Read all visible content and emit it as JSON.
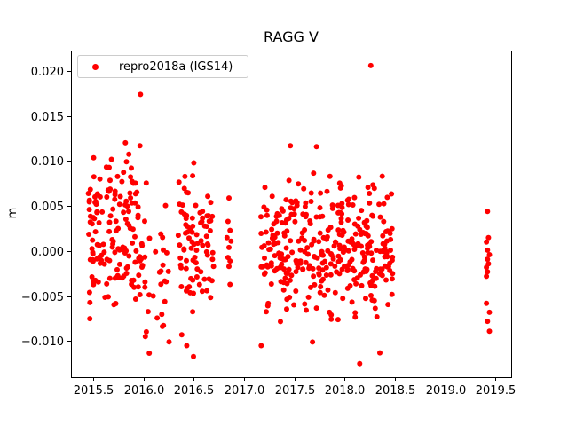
{
  "figure": {
    "title": "RAGG V",
    "ylabel": "m",
    "legend": {
      "label": "repro2018a (IGS14)",
      "marker_color": "#ff0000"
    }
  },
  "chart_data": {
    "type": "scatter",
    "title": "RAGG V",
    "xlabel": "",
    "ylabel": "m",
    "series_name": "repro2018a (IGS14)",
    "marker_color": "#ff0000",
    "marker_radius_px": 3,
    "grid": false,
    "legend_position": "upper left",
    "xlim": [
      2015.279,
      2019.656
    ],
    "ylim": [
      -0.014,
      0.02227
    ],
    "xticks": [
      {
        "value": 2015.5,
        "label": "2015.5"
      },
      {
        "value": 2016.0,
        "label": "2016.0"
      },
      {
        "value": 2016.5,
        "label": "2016.5"
      },
      {
        "value": 2017.0,
        "label": "2017.0"
      },
      {
        "value": 2017.5,
        "label": "2017.5"
      },
      {
        "value": 2018.0,
        "label": "2018.0"
      },
      {
        "value": 2018.5,
        "label": "2018.5"
      },
      {
        "value": 2019.0,
        "label": "2019.0"
      },
      {
        "value": 2019.5,
        "label": "2019.5"
      }
    ],
    "yticks": [
      {
        "value": 0.02,
        "label": "0.020"
      },
      {
        "value": 0.015,
        "label": "0.015"
      },
      {
        "value": 0.01,
        "label": "0.010"
      },
      {
        "value": 0.005,
        "label": "0.005"
      },
      {
        "value": 0.0,
        "label": "0.000"
      },
      {
        "value": -0.005,
        "label": "−0.005"
      },
      {
        "value": -0.01,
        "label": "−0.010"
      }
    ],
    "seed": 7,
    "clusters": [
      {
        "name": "2015-dense",
        "x_start": 2015.45,
        "x_end": 2015.98,
        "n": 150,
        "y_mean": 0.0012,
        "y_sd": 0.0045,
        "y_min": -0.0088,
        "y_max": 0.0127
      },
      {
        "name": "2016-tail",
        "x_start": 2015.98,
        "x_end": 2016.26,
        "n": 35,
        "y_mean": -0.0015,
        "y_sd": 0.005,
        "y_min": -0.0115,
        "y_max": 0.0085
      },
      {
        "name": "2016-mid",
        "x_start": 2016.34,
        "x_end": 2016.7,
        "n": 85,
        "y_mean": 0.0008,
        "y_sd": 0.004,
        "y_min": -0.0078,
        "y_max": 0.0085
      },
      {
        "name": "2017-2018-main",
        "x_start": 2017.16,
        "x_end": 2018.48,
        "n": 360,
        "y_mean": 0.0004,
        "y_sd": 0.0038,
        "y_min": -0.0082,
        "y_max": 0.0088
      }
    ],
    "explicit_points": [
      [
        2016.85,
        0.0059
      ],
      [
        2016.84,
        0.0033
      ],
      [
        2016.86,
        0.0023
      ],
      [
        2016.83,
        0.0015
      ],
      [
        2016.87,
        0.0011
      ],
      [
        2016.85,
        0.0004
      ],
      [
        2016.84,
        -0.0007
      ],
      [
        2016.86,
        -0.0011
      ],
      [
        2016.85,
        -0.0017
      ],
      [
        2016.86,
        -0.0037
      ],
      [
        2019.42,
        0.0044
      ],
      [
        2019.43,
        0.0015
      ],
      [
        2019.41,
        0.001
      ],
      [
        2019.42,
        0.0001
      ],
      [
        2019.44,
        -0.0004
      ],
      [
        2019.42,
        -0.0009
      ],
      [
        2019.43,
        -0.0014
      ],
      [
        2019.41,
        -0.0018
      ],
      [
        2019.42,
        -0.0023
      ],
      [
        2019.41,
        -0.0028
      ],
      [
        2019.41,
        -0.0058
      ],
      [
        2019.44,
        -0.0068
      ],
      [
        2019.42,
        -0.0078
      ],
      [
        2019.44,
        -0.0089
      ]
    ],
    "outlier_points": [
      [
        2015.97,
        0.0174
      ],
      [
        2015.965,
        0.0117
      ],
      [
        2016.5,
        0.0098
      ],
      [
        2016.38,
        -0.0093
      ],
      [
        2016.43,
        -0.0105
      ],
      [
        2016.497,
        -0.0117
      ],
      [
        2017.46,
        0.0117
      ],
      [
        2017.72,
        0.0116
      ],
      [
        2018.26,
        0.0206
      ],
      [
        2017.17,
        -0.0105
      ],
      [
        2017.68,
        -0.0101
      ],
      [
        2018.15,
        -0.0125
      ],
      [
        2018.35,
        -0.0113
      ]
    ]
  }
}
